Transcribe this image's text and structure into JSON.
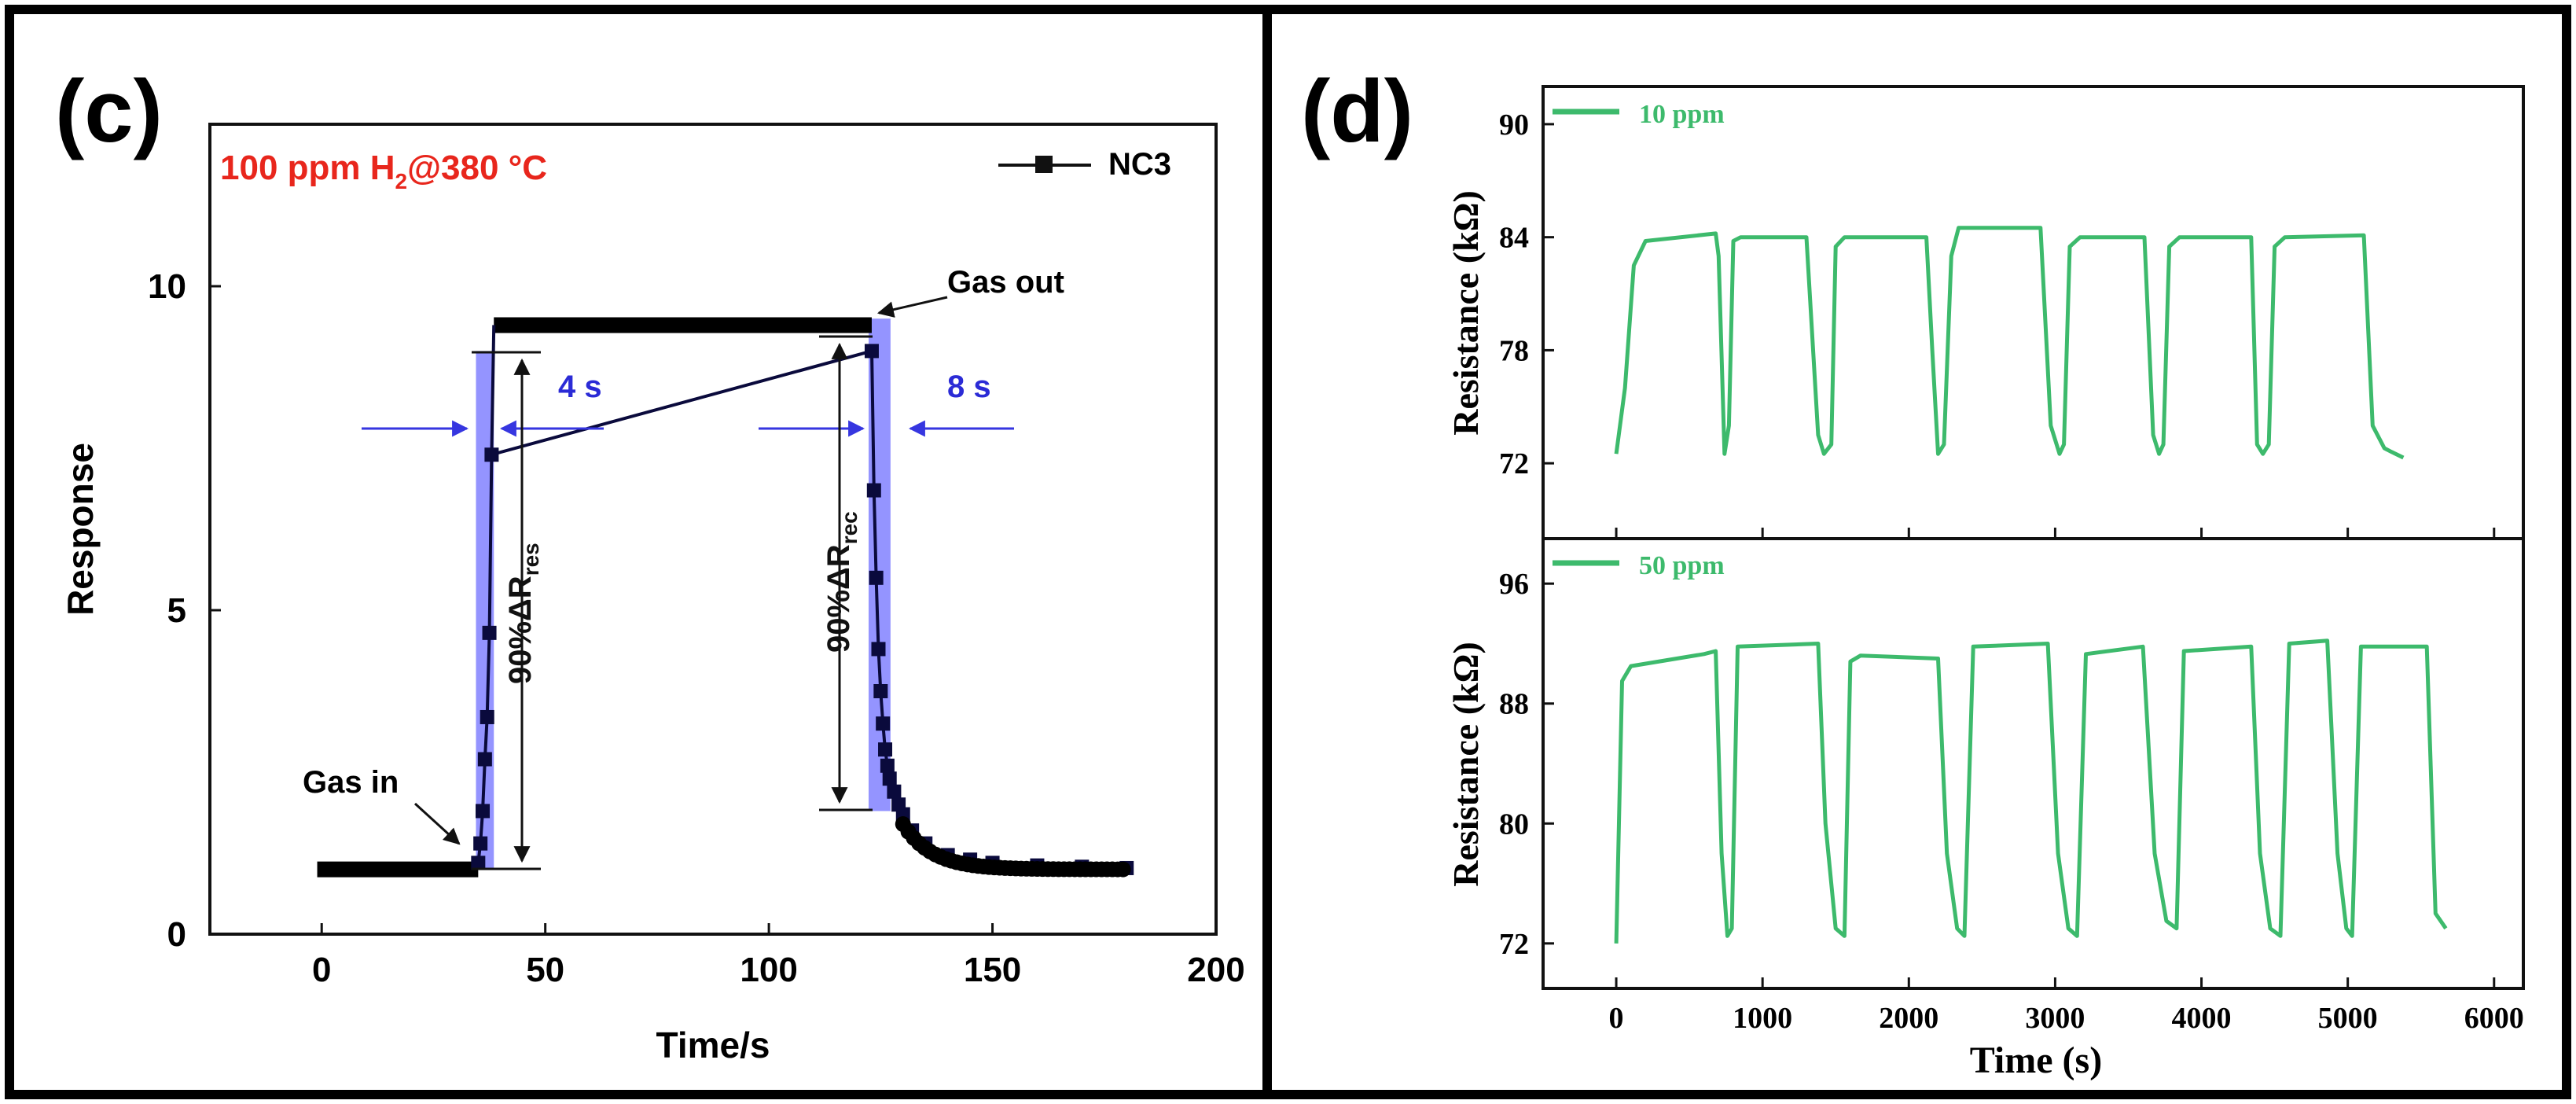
{
  "panel_c": {
    "label": "(c)",
    "condition_prefix": "100 ppm H",
    "condition_sub": "2",
    "condition_suffix": "@380 °C",
    "legend": "NC3",
    "annotations": {
      "gas_in": "Gas in",
      "gas_out": "Gas out",
      "resp_time": "4 s",
      "rec_time": "8 s",
      "res_label_main": "90%ΔR",
      "res_label_sub": "res",
      "rec_label_main": "90%ΔR",
      "rec_label_sub": "rec"
    },
    "colors": {
      "series": "#0a0a3c",
      "highlight": "#7070ff",
      "arrow": "#3636e0",
      "condition": "#e8261c",
      "time_text": "#2b2bd6"
    }
  },
  "panel_d": {
    "label": "(d)",
    "xlabel": "Time (s)",
    "ylabel_top": "Resistance (kΩ)",
    "ylabel_bottom": "Resistance (kΩ)",
    "legend_top": "10 ppm",
    "legend_bottom": "50 ppm",
    "line_color": "#3dba6c"
  },
  "chart_data": [
    {
      "type": "line",
      "xlabel": "Time/s",
      "ylabel": "Response",
      "xlim": [
        -25,
        200
      ],
      "ylim": [
        0,
        12.5
      ],
      "xticks": [
        0,
        50,
        100,
        150,
        200
      ],
      "yticks": [
        0,
        5,
        10
      ],
      "series": [
        {
          "name": "NC3",
          "x": [
            35,
            35.5,
            36,
            36.5,
            37,
            37.5,
            38,
            123,
            123.5,
            124,
            124.5,
            125,
            125.5,
            126,
            126.5,
            127,
            128,
            129,
            130,
            132,
            135,
            140,
            145,
            150,
            160,
            170,
            180
          ],
          "y": [
            1.1,
            1.4,
            1.9,
            2.7,
            3.35,
            4.65,
            7.4,
            9.0,
            6.85,
            5.5,
            4.4,
            3.75,
            3.25,
            2.85,
            2.6,
            2.4,
            2.2,
            2.0,
            1.85,
            1.6,
            1.4,
            1.22,
            1.15,
            1.1,
            1.06,
            1.04,
            1.02
          ]
        }
      ],
      "baseline": {
        "x": [
          -1,
          35
        ],
        "y": 1.0
      },
      "plateau": {
        "x": [
          38.5,
          123
        ],
        "y": 9.4
      }
    },
    {
      "type": "line",
      "xlabel": "Time (s)",
      "ylabel": "Resistance (kΩ)",
      "xlim": [
        -500,
        6200
      ],
      "ylim": [
        68,
        92
      ],
      "yticks": [
        72,
        78,
        84,
        90
      ],
      "series": [
        {
          "name": "10 ppm",
          "x": [
            0,
            60,
            120,
            200,
            680,
            700,
            740,
            770,
            800,
            850,
            1300,
            1380,
            1420,
            1470,
            1500,
            1560,
            2120,
            2160,
            2200,
            2240,
            2290,
            2340,
            2390,
            2900,
            2970,
            3030,
            3060,
            3100,
            3170,
            3610,
            3670,
            3710,
            3740,
            3780,
            3850,
            4340,
            4380,
            4420,
            4460,
            4500,
            4570,
            5110,
            5170,
            5250,
            5300,
            5380
          ],
          "y": [
            72.5,
            76,
            82.5,
            83.8,
            84.2,
            83,
            72.5,
            74,
            83.8,
            84,
            84,
            73.5,
            72.5,
            73,
            83.5,
            84,
            84,
            78,
            72.5,
            73,
            83,
            84.5,
            84.5,
            84.5,
            74,
            72.5,
            73,
            83.5,
            84,
            84,
            73.5,
            72.5,
            73,
            83.5,
            84,
            84,
            73,
            72.5,
            73,
            83.5,
            84,
            84.1,
            74,
            72.8,
            72.6,
            72.3
          ]
        },
        {
          "name": "50 ppm",
          "x": [
            0,
            40,
            100,
            600,
            680,
            720,
            760,
            790,
            830,
            1380,
            1430,
            1500,
            1560,
            1600,
            1670,
            2200,
            2260,
            2330,
            2380,
            2440,
            2950,
            3020,
            3090,
            3150,
            3210,
            3600,
            3680,
            3760,
            3830,
            3880,
            4340,
            4400,
            4470,
            4540,
            4600,
            4860,
            4930,
            4990,
            5030,
            5090,
            5540,
            5600,
            5670
          ],
          "y": [
            72,
            89.5,
            90.5,
            91.3,
            91.5,
            78,
            72.5,
            73,
            91.8,
            92,
            80,
            73,
            72.5,
            90.8,
            91.2,
            91,
            78,
            73,
            72.5,
            91.8,
            92,
            78,
            73,
            72.5,
            91.3,
            91.8,
            78,
            73.5,
            73,
            91.5,
            91.8,
            78,
            73,
            72.5,
            92,
            92.2,
            78,
            73,
            72.5,
            91.8,
            91.8,
            74,
            73
          ]
        }
      ]
    }
  ]
}
